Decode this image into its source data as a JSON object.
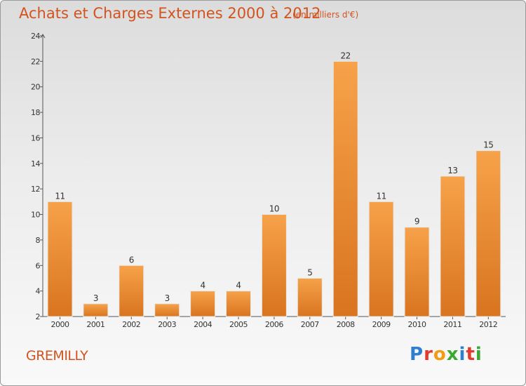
{
  "title": "Achats et Charges Externes 2000 à 2012",
  "subtitle": "(en milliers d'€)",
  "town": "GREMILLY",
  "logo": {
    "text": "Proxiti",
    "colors": [
      "#2f7fd0",
      "#e23b2e",
      "#f39c12",
      "#3aa832",
      "#2f7fd0",
      "#e23b2e",
      "#3aa832"
    ]
  },
  "colors": {
    "accent": "#d2531e",
    "bar_light": "#f6a24a",
    "bar_dark": "#d9741f"
  },
  "chart_data": {
    "type": "bar",
    "categories": [
      "2000",
      "2001",
      "2002",
      "2003",
      "2004",
      "2005",
      "2006",
      "2007",
      "2008",
      "2009",
      "2010",
      "2011",
      "2012"
    ],
    "values": [
      11,
      3,
      6,
      3,
      4,
      4,
      10,
      5,
      22,
      11,
      9,
      13,
      15
    ],
    "title": "Achats et Charges Externes 2000 à 2012",
    "subtitle": "(en milliers d'€)",
    "ylim": [
      2,
      24
    ],
    "yticks": [
      2,
      4,
      6,
      8,
      10,
      12,
      14,
      16,
      18,
      20,
      22,
      24
    ],
    "grid": false,
    "data_labels": true
  }
}
